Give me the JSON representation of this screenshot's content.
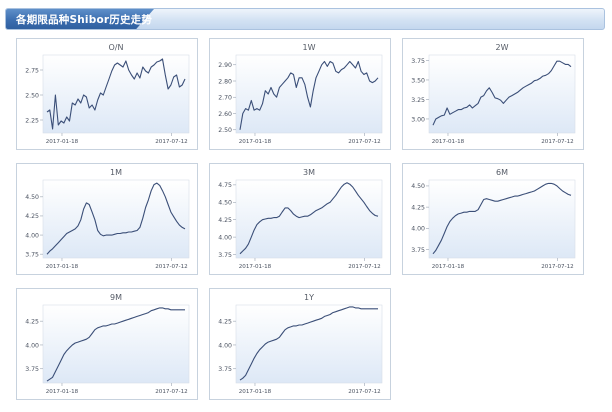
{
  "page_title": "各期限品种Shibor历史走势",
  "colors": {
    "line": "#3b4f78",
    "plot_top": "#ffffff",
    "plot_bottom": "#dde8f6",
    "header_accent": "#3c6eb0"
  },
  "chart_data": [
    {
      "type": "line",
      "title": "O/N",
      "x_ticks": [
        "2017-01-18",
        "2017-07-12"
      ],
      "y_ticks": [
        "2.25",
        "2.50",
        "2.75"
      ],
      "ylim": [
        2.12,
        2.9
      ],
      "grid": false,
      "series": [
        {
          "values": [
            2.33,
            2.35,
            2.16,
            2.5,
            2.2,
            2.24,
            2.22,
            2.28,
            2.24,
            2.42,
            2.4,
            2.46,
            2.42,
            2.5,
            2.48,
            2.37,
            2.4,
            2.35,
            2.45,
            2.52,
            2.5,
            2.58,
            2.66,
            2.74,
            2.8,
            2.82,
            2.8,
            2.78,
            2.84,
            2.75,
            2.7,
            2.66,
            2.72,
            2.67,
            2.78,
            2.74,
            2.72,
            2.78,
            2.8,
            2.83,
            2.84,
            2.86,
            2.7,
            2.56,
            2.6,
            2.68,
            2.7,
            2.58,
            2.6,
            2.66
          ]
        }
      ]
    },
    {
      "type": "line",
      "title": "1W",
      "x_ticks": [
        "2017-01-18",
        "2017-07-12"
      ],
      "y_ticks": [
        "2.50",
        "2.60",
        "2.70",
        "2.80",
        "2.90"
      ],
      "ylim": [
        2.48,
        2.96
      ],
      "grid": false,
      "series": [
        {
          "values": [
            2.5,
            2.6,
            2.63,
            2.62,
            2.68,
            2.62,
            2.63,
            2.62,
            2.66,
            2.74,
            2.72,
            2.76,
            2.72,
            2.7,
            2.76,
            2.78,
            2.8,
            2.82,
            2.85,
            2.84,
            2.76,
            2.82,
            2.82,
            2.78,
            2.7,
            2.64,
            2.74,
            2.82,
            2.86,
            2.9,
            2.92,
            2.89,
            2.92,
            2.91,
            2.86,
            2.85,
            2.87,
            2.88,
            2.9,
            2.92,
            2.9,
            2.88,
            2.92,
            2.86,
            2.84,
            2.85,
            2.8,
            2.79,
            2.8,
            2.82
          ]
        }
      ]
    },
    {
      "type": "line",
      "title": "2W",
      "x_ticks": [
        "2017-01-18",
        "2017-07-12"
      ],
      "y_ticks": [
        "3.00",
        "3.25",
        "3.50",
        "3.75"
      ],
      "ylim": [
        2.82,
        3.82
      ],
      "grid": false,
      "series": [
        {
          "values": [
            2.92,
            3.0,
            3.02,
            3.04,
            3.05,
            3.14,
            3.06,
            3.08,
            3.1,
            3.12,
            3.12,
            3.14,
            3.15,
            3.18,
            3.14,
            3.17,
            3.2,
            3.28,
            3.3,
            3.36,
            3.4,
            3.34,
            3.27,
            3.26,
            3.24,
            3.2,
            3.24,
            3.28,
            3.3,
            3.32,
            3.34,
            3.37,
            3.4,
            3.42,
            3.44,
            3.46,
            3.49,
            3.5,
            3.52,
            3.55,
            3.56,
            3.58,
            3.62,
            3.68,
            3.74,
            3.74,
            3.72,
            3.7,
            3.7,
            3.67
          ]
        }
      ]
    },
    {
      "type": "line",
      "title": "1M",
      "x_ticks": [
        "2017-01-18",
        "2017-07-12"
      ],
      "y_ticks": [
        "3.75",
        "4.00",
        "4.25",
        "4.50"
      ],
      "ylim": [
        3.7,
        4.72
      ],
      "grid": false,
      "series": [
        {
          "values": [
            3.75,
            3.79,
            3.82,
            3.86,
            3.9,
            3.94,
            3.98,
            4.02,
            4.04,
            4.06,
            4.08,
            4.12,
            4.2,
            4.34,
            4.42,
            4.4,
            4.3,
            4.2,
            4.06,
            4.01,
            3.99,
            4.0,
            4.0,
            4.0,
            4.01,
            4.02,
            4.02,
            4.03,
            4.03,
            4.04,
            4.04,
            4.05,
            4.06,
            4.1,
            4.22,
            4.36,
            4.46,
            4.58,
            4.66,
            4.68,
            4.65,
            4.58,
            4.5,
            4.4,
            4.3,
            4.24,
            4.18,
            4.13,
            4.1,
            4.08
          ]
        }
      ]
    },
    {
      "type": "line",
      "title": "3M",
      "x_ticks": [
        "2017-01-18",
        "2017-07-12"
      ],
      "y_ticks": [
        "3.75",
        "4.00",
        "4.25",
        "4.50",
        "4.75"
      ],
      "ylim": [
        3.7,
        4.82
      ],
      "grid": false,
      "series": [
        {
          "values": [
            3.76,
            3.8,
            3.84,
            3.9,
            4.0,
            4.1,
            4.18,
            4.22,
            4.25,
            4.26,
            4.27,
            4.27,
            4.28,
            4.28,
            4.3,
            4.36,
            4.42,
            4.42,
            4.38,
            4.33,
            4.3,
            4.28,
            4.29,
            4.3,
            4.3,
            4.32,
            4.35,
            4.38,
            4.4,
            4.42,
            4.45,
            4.48,
            4.5,
            4.55,
            4.6,
            4.66,
            4.72,
            4.76,
            4.78,
            4.76,
            4.72,
            4.66,
            4.6,
            4.55,
            4.5,
            4.44,
            4.38,
            4.34,
            4.31,
            4.3
          ]
        }
      ]
    },
    {
      "type": "line",
      "title": "6M",
      "x_ticks": [
        "2017-01-18",
        "2017-07-12"
      ],
      "y_ticks": [
        "3.75",
        "4.00",
        "4.25",
        "4.50"
      ],
      "ylim": [
        3.65,
        4.57
      ],
      "grid": false,
      "series": [
        {
          "values": [
            3.7,
            3.74,
            3.8,
            3.86,
            3.94,
            4.02,
            4.08,
            4.12,
            4.15,
            4.17,
            4.18,
            4.19,
            4.19,
            4.2,
            4.2,
            4.2,
            4.22,
            4.28,
            4.34,
            4.35,
            4.34,
            4.33,
            4.32,
            4.32,
            4.33,
            4.34,
            4.35,
            4.36,
            4.37,
            4.38,
            4.38,
            4.39,
            4.4,
            4.41,
            4.42,
            4.43,
            4.44,
            4.46,
            4.48,
            4.5,
            4.52,
            4.53,
            4.53,
            4.52,
            4.5,
            4.47,
            4.44,
            4.42,
            4.4,
            4.39
          ]
        }
      ]
    },
    {
      "type": "line",
      "title": "9M",
      "x_ticks": [
        "2017-01-18",
        "2017-07-12"
      ],
      "y_ticks": [
        "3.75",
        "4.00",
        "4.25"
      ],
      "ylim": [
        3.6,
        4.42
      ],
      "grid": false,
      "series": [
        {
          "values": [
            3.62,
            3.64,
            3.66,
            3.72,
            3.78,
            3.84,
            3.9,
            3.94,
            3.97,
            4.0,
            4.02,
            4.03,
            4.04,
            4.05,
            4.06,
            4.08,
            4.12,
            4.16,
            4.18,
            4.19,
            4.2,
            4.2,
            4.21,
            4.22,
            4.22,
            4.23,
            4.24,
            4.25,
            4.26,
            4.27,
            4.28,
            4.29,
            4.3,
            4.31,
            4.32,
            4.33,
            4.34,
            4.36,
            4.37,
            4.38,
            4.39,
            4.39,
            4.38,
            4.38,
            4.37,
            4.37,
            4.37,
            4.37,
            4.37,
            4.37
          ]
        }
      ]
    },
    {
      "type": "line",
      "title": "1Y",
      "x_ticks": [
        "2017-01-18",
        "2017-07-12"
      ],
      "y_ticks": [
        "3.75",
        "4.00",
        "4.25"
      ],
      "ylim": [
        3.6,
        4.42
      ],
      "grid": false,
      "series": [
        {
          "values": [
            3.63,
            3.65,
            3.68,
            3.74,
            3.8,
            3.86,
            3.91,
            3.95,
            3.98,
            4.01,
            4.03,
            4.04,
            4.05,
            4.06,
            4.08,
            4.12,
            4.16,
            4.18,
            4.19,
            4.2,
            4.2,
            4.21,
            4.21,
            4.22,
            4.23,
            4.24,
            4.25,
            4.26,
            4.27,
            4.28,
            4.3,
            4.31,
            4.32,
            4.34,
            4.35,
            4.36,
            4.37,
            4.38,
            4.39,
            4.4,
            4.4,
            4.39,
            4.39,
            4.38,
            4.38,
            4.38,
            4.38,
            4.38,
            4.38,
            4.38
          ]
        }
      ]
    }
  ]
}
